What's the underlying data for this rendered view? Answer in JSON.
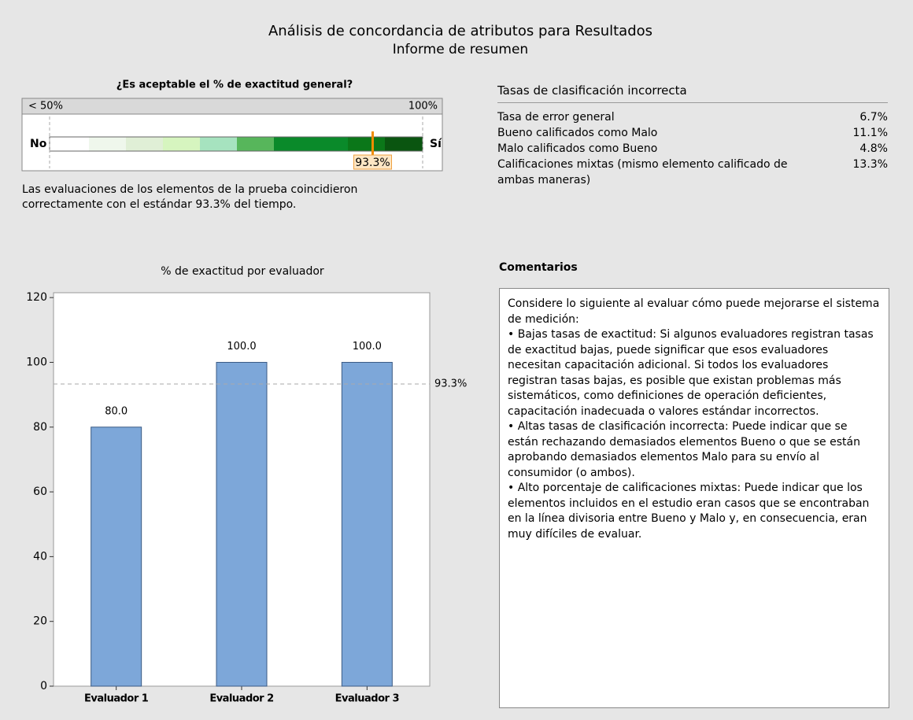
{
  "header": {
    "title": "Análisis de concordancia de atributos para Resultados",
    "subtitle": "Informe de resumen"
  },
  "gauge": {
    "title": "¿Es aceptable el % de exactitud general?",
    "low_label": "< 50%",
    "high_label": "100%",
    "no_label": "No",
    "yes_label": "Sí",
    "range": [
      50,
      100
    ],
    "value": 93.3,
    "value_label": "93.3%",
    "statement": "Las evaluaciones de los elementos de la prueba coincidieron correctamente con el estándar 93.3% del tiempo."
  },
  "misclassification": {
    "title": "Tasas de clasificación incorrecta",
    "rows": [
      [
        "Tasa de error general",
        "6.7%"
      ],
      [
        "Bueno calificados como Malo",
        "11.1%"
      ],
      [
        "Malo calificados como Bueno",
        "4.8%"
      ],
      [
        "Calificaciones mixtas (mismo elemento calificado de ambas maneras)",
        "13.3%"
      ]
    ]
  },
  "comments": {
    "title": "Comentarios",
    "paragraphs": [
      "Considere lo siguiente al evaluar cómo puede mejorarse el sistema de medición:",
      "• Bajas tasas de exactitud: Si algunos evaluadores registran tasas de exactitud bajas, puede significar que esos evaluadores necesitan capacitación adicional. Si todos los evaluadores registran tasas bajas, es posible que existan problemas más sistemáticos, como definiciones de operación deficientes, capacitación inadecuada o valores estándar incorrectos.",
      "• Altas tasas de clasificación incorrecta: Puede indicar que se están rechazando demasiados elementos Bueno o que se están aprobando demasiados elementos Malo para su envío al consumidor (o ambos).",
      "• Alto porcentaje de calificaciones mixtas: Puede indicar que los elementos incluidos en el estudio eran casos que se encontraban en la línea divisoria entre Bueno y Malo y, en consecuencia, eran muy difíciles de evaluar."
    ]
  },
  "chart_data": {
    "type": "bar",
    "title": "% de exactitud por evaluador",
    "categories": [
      "Evaluador 1",
      "Evaluador 2",
      "Evaluador 3"
    ],
    "values": [
      80,
      100,
      100
    ],
    "value_labels": [
      "80.0",
      "100.0",
      "100.0"
    ],
    "color": "#7da7d9",
    "ylim": [
      0,
      121.5
    ],
    "yticks": [
      0,
      20,
      40,
      60,
      80,
      100,
      120
    ],
    "reference_line": {
      "value": 93.3,
      "label": "93.3%"
    }
  }
}
